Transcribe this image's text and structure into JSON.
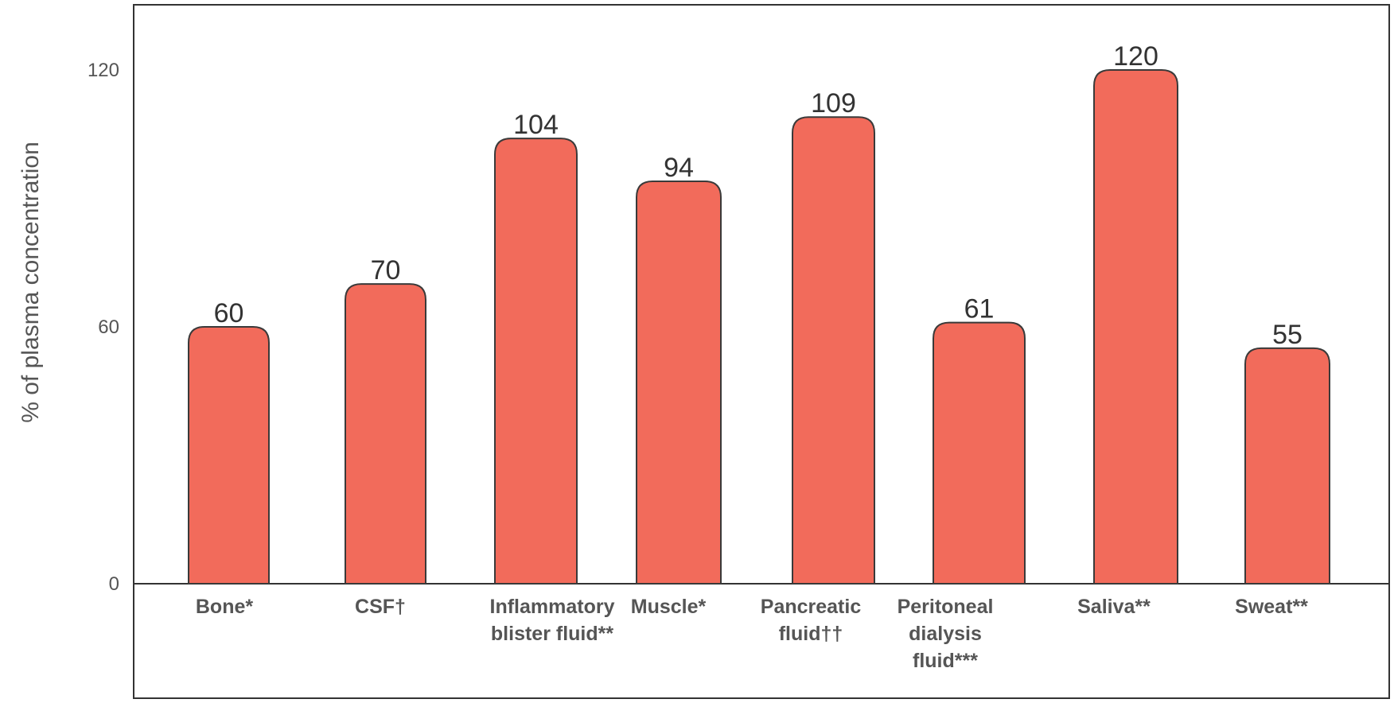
{
  "chart_data": {
    "type": "bar",
    "title": "",
    "xlabel": "",
    "ylabel": "% of plasma concentration",
    "ylim": [
      0,
      120
    ],
    "yticks": [
      "0",
      "60",
      "120"
    ],
    "ytick_values": [
      0,
      60,
      120
    ],
    "categories": [
      [
        "Bone*"
      ],
      [
        "CSF†"
      ],
      [
        "Inflammatory",
        "blister fluid**"
      ],
      [
        "Muscle*"
      ],
      [
        "Pancreatic",
        "fluid††"
      ],
      [
        "Peritoneal",
        "dialysis",
        "fluid***"
      ],
      [
        "Saliva**"
      ],
      [
        "Sweat**"
      ]
    ],
    "values": [
      60,
      70,
      104,
      94,
      109,
      61,
      120,
      55
    ],
    "data_labels": [
      "60",
      "70",
      "104",
      "94",
      "109",
      "61",
      "120",
      "55"
    ],
    "bar_color": "#f26b5b",
    "grid": false,
    "legend": "none"
  }
}
